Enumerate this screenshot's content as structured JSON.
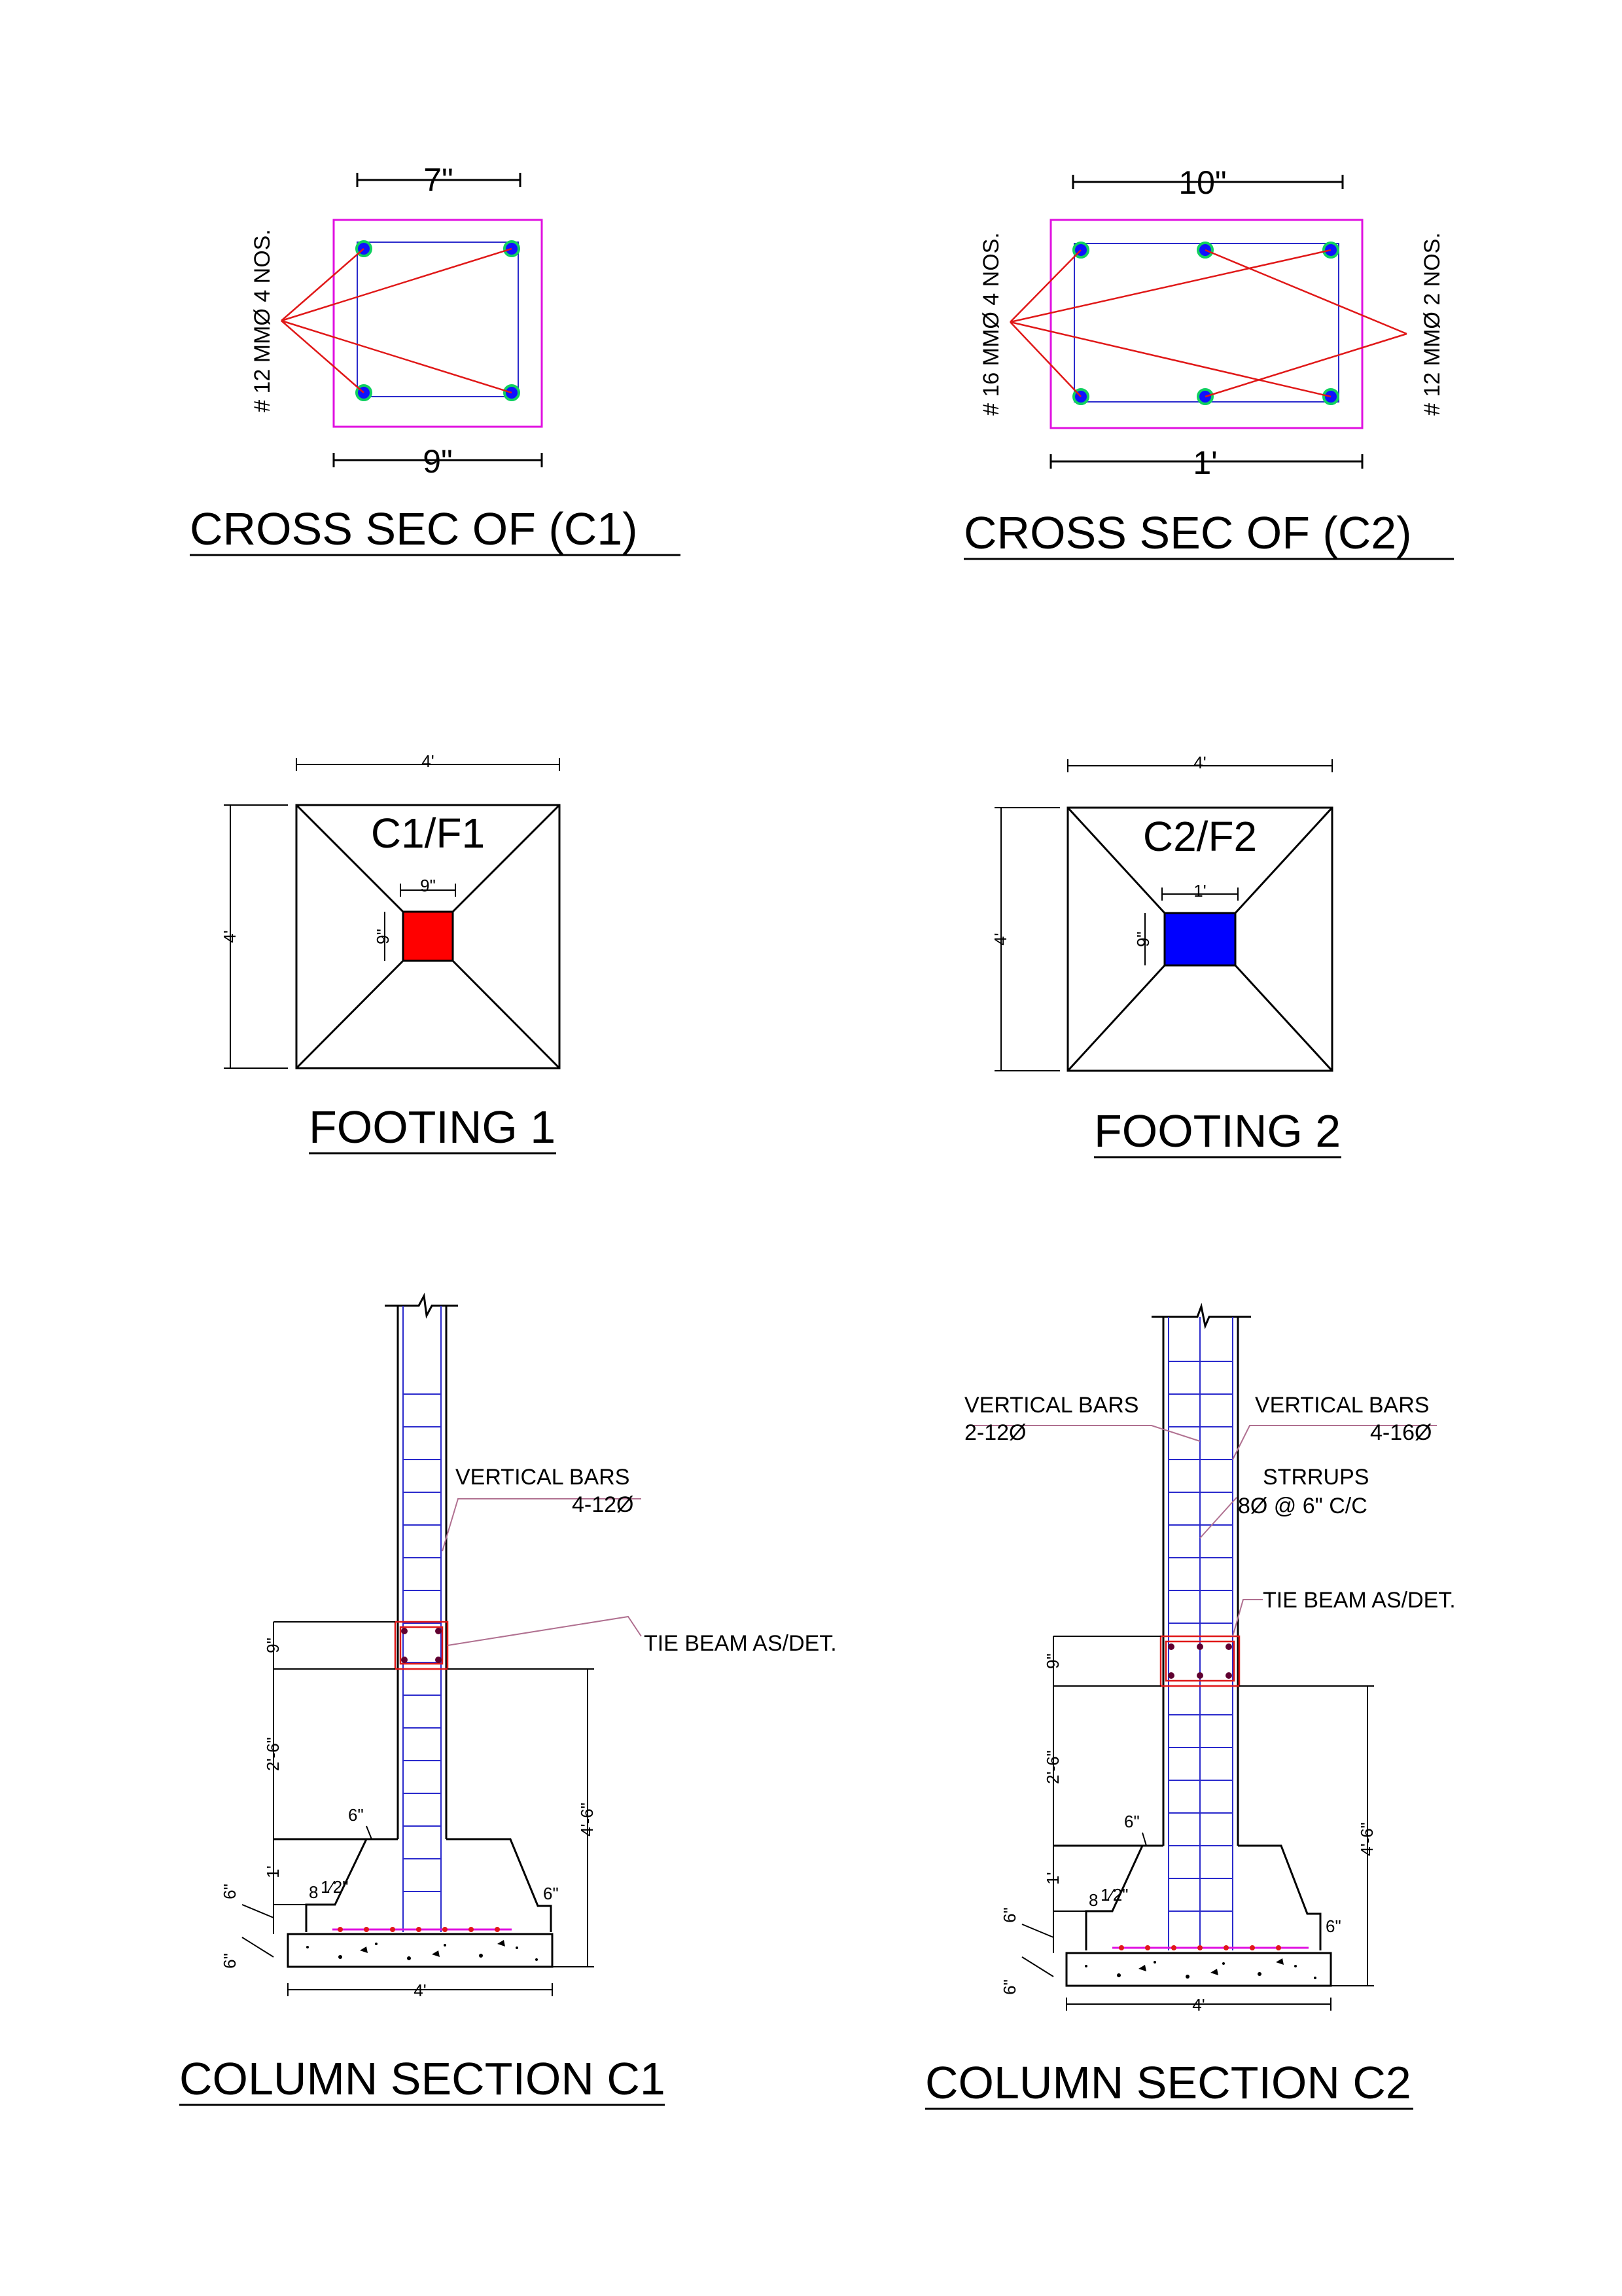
{
  "cross_c1": {
    "title": "CROSS SEC OF (C1)",
    "top_dim": "7\"",
    "bottom_dim": "9\"",
    "rebar_label": "# 12 MMØ 4 NOS."
  },
  "cross_c2": {
    "title": "CROSS SEC OF (C2)",
    "top_dim": "10\"",
    "bottom_dim": "1'",
    "rebar_label_left": "# 16 MMØ 4 NOS.",
    "rebar_label_right": "# 12 MMØ 2 NOS."
  },
  "footing1": {
    "title": "FOOTING 1",
    "tag": "C1/F1",
    "width_dim": "4'",
    "height_dim": "4'",
    "col_w": "9\"",
    "col_h": "9\"",
    "col_color": "#ff0000"
  },
  "footing2": {
    "title": "FOOTING 2",
    "tag": "C2/F2",
    "width_dim": "4'",
    "height_dim": "4'",
    "col_w": "1'",
    "col_h": "9\"",
    "col_color": "#0000ff"
  },
  "section_c1": {
    "title": "COLUMN SECTION C1",
    "vbars_label": "VERTICAL BARS",
    "vbars_value": "4-12Ø",
    "tie_label": "TIE BEAM AS/DET.",
    "dim_tie": "9\"",
    "dim_2_6": "2'-6\"",
    "dim_1": "1'",
    "dim_6a": "6\"",
    "dim_6b": "6\"",
    "dim_6c": "6\"",
    "dim_6d": "6\"",
    "dim_4_6": "4'-6\"",
    "dim_base": "4'",
    "dim_8": "8",
    "dim_half": "1⁄2\""
  },
  "section_c2": {
    "title": "COLUMN SECTION C2",
    "vbars_left_label": "VERTICAL BARS",
    "vbars_left_value": "2-12Ø",
    "vbars_right_label": "VERTICAL BARS",
    "vbars_right_value": "4-16Ø",
    "stirrups_label": "STRRUPS",
    "stirrups_value": "8Ø @ 6\" C/C",
    "tie_label": "TIE BEAM AS/DET.",
    "dim_tie": "9\"",
    "dim_2_6": "2'-6\"",
    "dim_1": "1'",
    "dim_6a": "6\"",
    "dim_6b": "6\"",
    "dim_6c": "6\"",
    "dim_6d": "6\"",
    "dim_4_6": "4'-6\"",
    "dim_base": "4'",
    "dim_8": "8",
    "dim_half": "1⁄2\""
  }
}
